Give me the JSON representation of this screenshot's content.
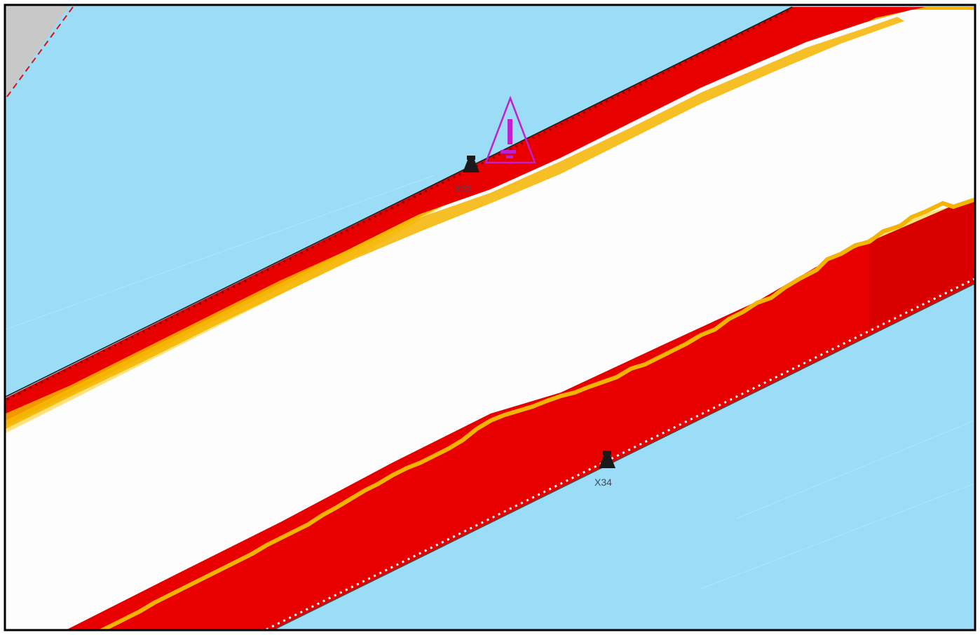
{
  "map": {
    "colors": {
      "water": "#9bdcf6",
      "land": "#c8c8c8",
      "boundary_line": "#e01010",
      "channel_clear": "#fdfdfd",
      "depth_shallow": "#e80000",
      "depth_mid": "#f5b400",
      "depth_edge": "#ffe27a",
      "hazard_symbol": "#c020d0",
      "marker": "#1a1a1a",
      "frame": "#000000"
    },
    "markers": [
      {
        "id": "X33",
        "label": "X33",
        "icon": "buoy-icon"
      },
      {
        "id": "X34",
        "label": "X34",
        "icon": "buoy-icon"
      }
    ],
    "hazard": {
      "icon": "warning-triangle-icon"
    }
  }
}
